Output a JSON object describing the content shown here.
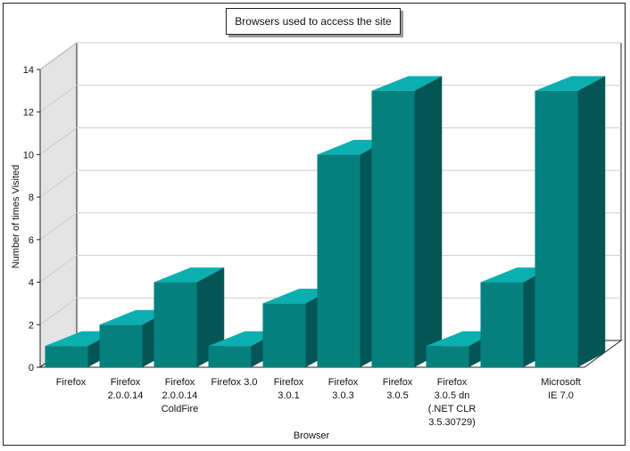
{
  "chart_data": {
    "type": "bar",
    "title": "Browsers used to access the site",
    "xlabel": "Browser",
    "ylabel": "Number of times Visited",
    "ylim": [
      0,
      14
    ],
    "yticks": [
      0,
      2,
      4,
      6,
      8,
      10,
      12,
      14
    ],
    "grid": true,
    "legend": "none",
    "categories": [
      "Firefox",
      "Firefox 2.0.0.14",
      "Firefox 2.0.0.14 ColdFire",
      "Firefox 3.0",
      "Firefox 3.0.1",
      "Firefox 3.0.3",
      "Firefox 3.0.5",
      "Firefox 3.0.5 dn (.NET CLR 3.5.30729)",
      "",
      "Microsoft IE 7.0"
    ],
    "category_label_lines": [
      [
        "Firefox"
      ],
      [
        "Firefox",
        "2.0.0.14"
      ],
      [
        "Firefox",
        "2.0.0.14",
        "ColdFire"
      ],
      [
        "Firefox 3.0"
      ],
      [
        "Firefox",
        "3.0.1"
      ],
      [
        "Firefox",
        "3.0.3"
      ],
      [
        "Firefox",
        "3.0.5"
      ],
      [
        "Firefox",
        "3.0.5 dn",
        "(.NET CLR",
        "3.5.30729)"
      ],
      [],
      [
        "Microsoft",
        "IE 7.0"
      ]
    ],
    "values": [
      1,
      2,
      4,
      1,
      3,
      10,
      13,
      1,
      4,
      13
    ],
    "colors": {
      "front": "#067f7f",
      "top": "#0cafaf",
      "side": "#045656",
      "wall": "#e4e4e4",
      "grid": "#cccccc"
    }
  }
}
